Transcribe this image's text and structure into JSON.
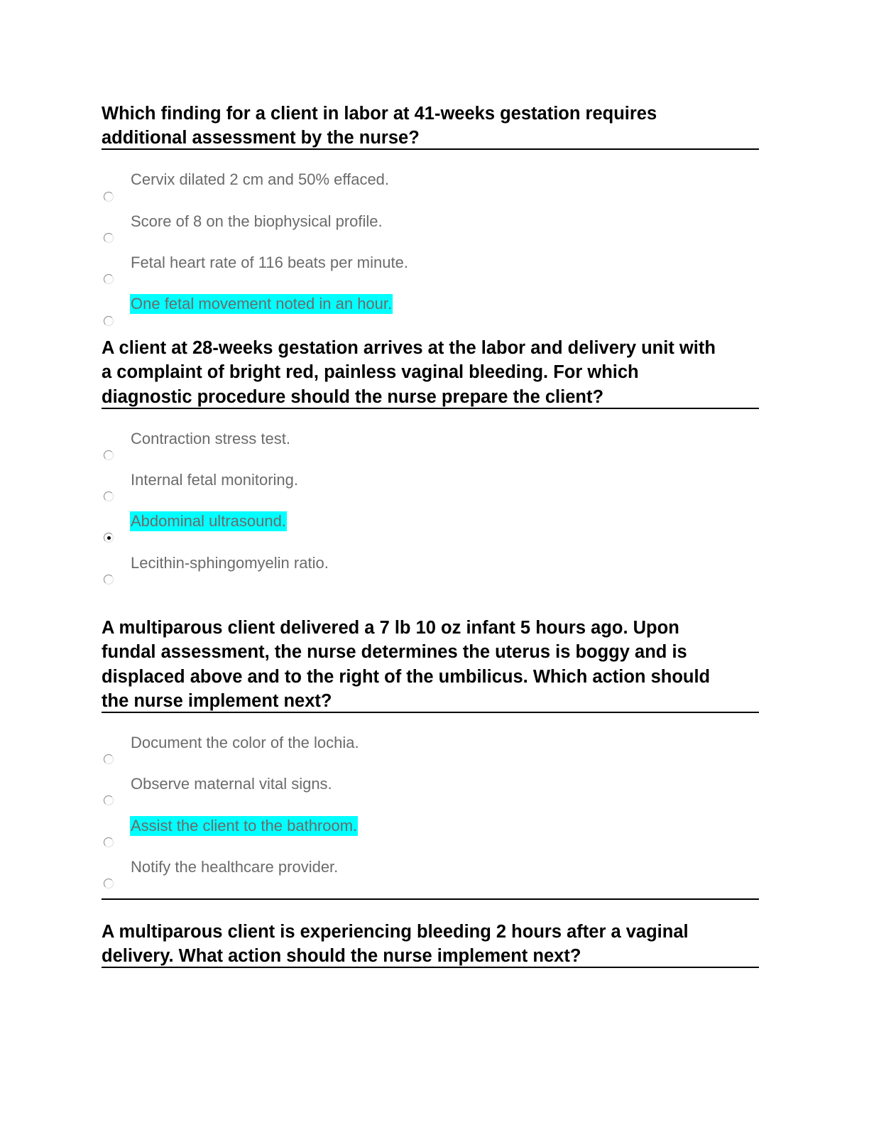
{
  "questions": [
    {
      "lines": [
        "Which finding for a client in labor at 41-weeks gestation requires",
        "additional assessment by the nurse?"
      ],
      "options": [
        {
          "text": "Cervix dilated 2 cm and 50% effaced.",
          "highlighted": false,
          "selected": false
        },
        {
          "text": "Score of 8 on the biophysical profile.",
          "highlighted": false,
          "selected": false
        },
        {
          "text": "Fetal heart rate of 116 beats per minute.",
          "highlighted": false,
          "selected": false
        },
        {
          "text": "One fetal movement noted in an hour.",
          "highlighted": true,
          "selected": false
        }
      ]
    },
    {
      "lines": [
        "A client at 28-weeks gestation arrives at the labor and delivery unit with",
        "a complaint of bright red, painless vaginal bleeding. For which",
        "diagnostic procedure should the nurse prepare the client?"
      ],
      "options": [
        {
          "text": "Contraction stress test.",
          "highlighted": false,
          "selected": false
        },
        {
          "text": "Internal fetal monitoring.",
          "highlighted": false,
          "selected": false
        },
        {
          "text": "Abdominal ultrasound.",
          "highlighted": true,
          "selected": true
        },
        {
          "text": "Lecithin-sphingomyelin ratio.",
          "highlighted": false,
          "selected": false
        }
      ]
    },
    {
      "lines": [
        "A multiparous client delivered a 7 lb 10 oz infant 5 hours ago. Upon",
        "fundal assessment, the nurse determines the uterus is boggy and is",
        "displaced above and to the right of the umbilicus. Which action should",
        "the nurse implement next?"
      ],
      "options": [
        {
          "text": "Document the color of the lochia.",
          "highlighted": false,
          "selected": false
        },
        {
          "text": "Observe maternal vital signs.",
          "highlighted": false,
          "selected": false
        },
        {
          "text": "Assist the client to the bathroom.",
          "highlighted": true,
          "selected": false
        },
        {
          "text": "Notify the healthcare provider.",
          "highlighted": false,
          "selected": false
        }
      ]
    },
    {
      "lines": [
        "A multiparous client is experiencing bleeding 2 hours after a vaginal",
        "delivery. What action should the nurse implement next?"
      ],
      "options": []
    }
  ],
  "colors": {
    "highlight": "#00ffff",
    "option_text": "#6b6b6b"
  }
}
